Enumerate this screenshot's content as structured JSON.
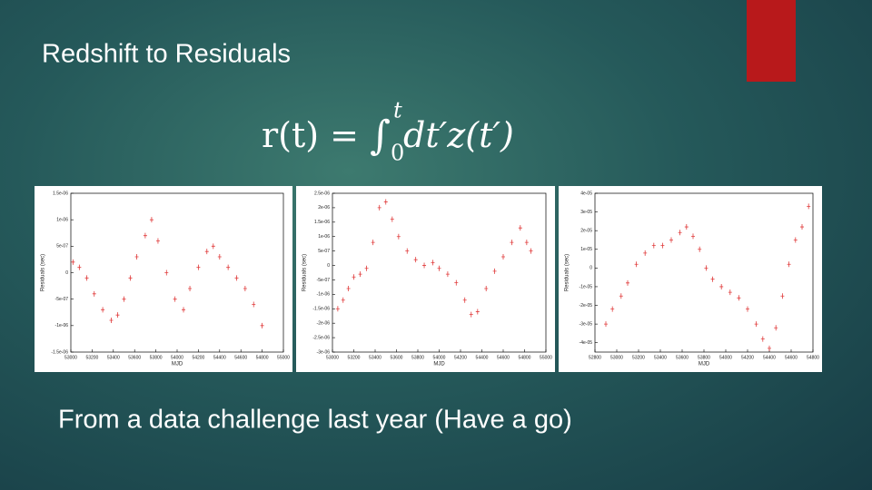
{
  "slide": {
    "title": "Redshift to Residuals",
    "equation": {
      "lhs": "r(t) = ",
      "integral": "∫",
      "upper": "t",
      "lower": "0",
      "integrand": "dt′z(t′)"
    },
    "caption": "From a data challenge last year (Have a go)"
  },
  "chart_data": [
    {
      "type": "scatter",
      "xlabel": "MJD",
      "ylabel": "Residuals (sec)",
      "color": "#e03a3a",
      "xlim": [
        53000,
        55000
      ],
      "xticks": [
        53000,
        53200,
        53400,
        53600,
        53800,
        54000,
        54200,
        54400,
        54600,
        54800,
        55000
      ],
      "ylim": [
        -1.5e-06,
        1.5e-06
      ],
      "yticks": [
        {
          "value": 1.5e-06,
          "label": "1.5e-06"
        },
        {
          "value": 1e-06,
          "label": "1e-06"
        },
        {
          "value": 5e-07,
          "label": "5e-07"
        },
        0,
        {
          "value": -5e-07,
          "label": "-5e-07"
        },
        {
          "value": -1e-06,
          "label": "-1e-06"
        },
        {
          "value": -1.5e-06,
          "label": "-1.5e-06"
        }
      ],
      "x": [
        53020,
        53080,
        53150,
        53220,
        53300,
        53380,
        53440,
        53500,
        53560,
        53620,
        53700,
        53760,
        53820,
        53900,
        53980,
        54060,
        54120,
        54200,
        54280,
        54340,
        54400,
        54480,
        54560,
        54640,
        54720,
        54800
      ],
      "values": [
        2e-07,
        1e-07,
        -1e-07,
        -4e-07,
        -7e-07,
        -9e-07,
        -8e-07,
        -5e-07,
        -1e-07,
        3e-07,
        7e-07,
        1e-06,
        6e-07,
        0,
        -5e-07,
        -7e-07,
        -3e-07,
        1e-07,
        4e-07,
        5e-07,
        3e-07,
        1e-07,
        -1e-07,
        -3e-07,
        -6e-07,
        -1e-06
      ]
    },
    {
      "type": "scatter",
      "xlabel": "MJD",
      "ylabel": "Residuals (sec)",
      "color": "#e03a3a",
      "xlim": [
        53000,
        55000
      ],
      "xticks": [
        53000,
        53200,
        53400,
        53600,
        53800,
        54000,
        54200,
        54400,
        54600,
        54800,
        55000
      ],
      "ylim": [
        -3e-06,
        2.5e-06
      ],
      "yticks": [
        {
          "value": 2.5e-06,
          "label": "2.5e-06"
        },
        {
          "value": 2e-06,
          "label": "2e-06"
        },
        {
          "value": 1.5e-06,
          "label": "1.5e-06"
        },
        {
          "value": 1e-06,
          "label": "1e-06"
        },
        {
          "value": 5e-07,
          "label": "5e-07"
        },
        0,
        {
          "value": -5e-07,
          "label": "-5e-07"
        },
        {
          "value": -1e-06,
          "label": "-1e-06"
        },
        {
          "value": -1.5e-06,
          "label": "-1.5e-06"
        },
        {
          "value": -2e-06,
          "label": "-2e-06"
        },
        {
          "value": -2.5e-06,
          "label": "-2.5e-06"
        },
        {
          "value": -3e-06,
          "label": "-3e-06"
        }
      ],
      "x": [
        53050,
        53100,
        53150,
        53200,
        53260,
        53320,
        53380,
        53440,
        53500,
        53560,
        53620,
        53700,
        53780,
        53860,
        53940,
        54000,
        54080,
        54160,
        54240,
        54300,
        54360,
        54440,
        54520,
        54600,
        54680,
        54760,
        54820,
        54860
      ],
      "values": [
        -1.5e-06,
        -1.2e-06,
        -8e-07,
        -4e-07,
        -3e-07,
        -1e-07,
        8e-07,
        2e-06,
        2.2e-06,
        1.6e-06,
        1e-06,
        5e-07,
        2e-07,
        0,
        1e-07,
        -1e-07,
        -3e-07,
        -6e-07,
        -1.2e-06,
        -1.7e-06,
        -1.6e-06,
        -8e-07,
        -2e-07,
        3e-07,
        8e-07,
        1.3e-06,
        8e-07,
        5e-07
      ]
    },
    {
      "type": "scatter",
      "xlabel": "MJD",
      "ylabel": "Residuals (sec)",
      "color": "#e03a3a",
      "xlim": [
        52800,
        54800
      ],
      "xticks": [
        52800,
        53000,
        53200,
        53400,
        53600,
        53800,
        54000,
        54200,
        54400,
        54600,
        54800
      ],
      "ylim": [
        -4.5e-05,
        4e-05
      ],
      "yticks": [
        {
          "value": 4e-05,
          "label": "4e-05"
        },
        {
          "value": 3e-05,
          "label": "3e-05"
        },
        {
          "value": 2e-05,
          "label": "2e-05"
        },
        {
          "value": 1e-05,
          "label": "1e-05"
        },
        0,
        {
          "value": -1e-05,
          "label": "-1e-05"
        },
        {
          "value": -2e-05,
          "label": "-2e-05"
        },
        {
          "value": -3e-05,
          "label": "-3e-05"
        },
        {
          "value": -4e-05,
          "label": "-4e-05"
        }
      ],
      "x": [
        52900,
        52960,
        53040,
        53100,
        53180,
        53260,
        53340,
        53420,
        53500,
        53580,
        53640,
        53700,
        53760,
        53820,
        53880,
        53960,
        54040,
        54120,
        54200,
        54280,
        54340,
        54400,
        54460,
        54520,
        54580,
        54640,
        54700,
        54760
      ],
      "values": [
        -3e-05,
        -2.2e-05,
        -1.5e-05,
        -8e-06,
        2e-06,
        8e-06,
        1.2e-05,
        1.2e-05,
        1.5e-05,
        1.9e-05,
        2.2e-05,
        1.7e-05,
        1e-05,
        0,
        -6e-06,
        -1e-05,
        -1.3e-05,
        -1.6e-05,
        -2.2e-05,
        -3e-05,
        -3.8e-05,
        -4.3e-05,
        -3.2e-05,
        -1.5e-05,
        2e-06,
        1.5e-05,
        2.2e-05,
        3.3e-05
      ]
    }
  ]
}
